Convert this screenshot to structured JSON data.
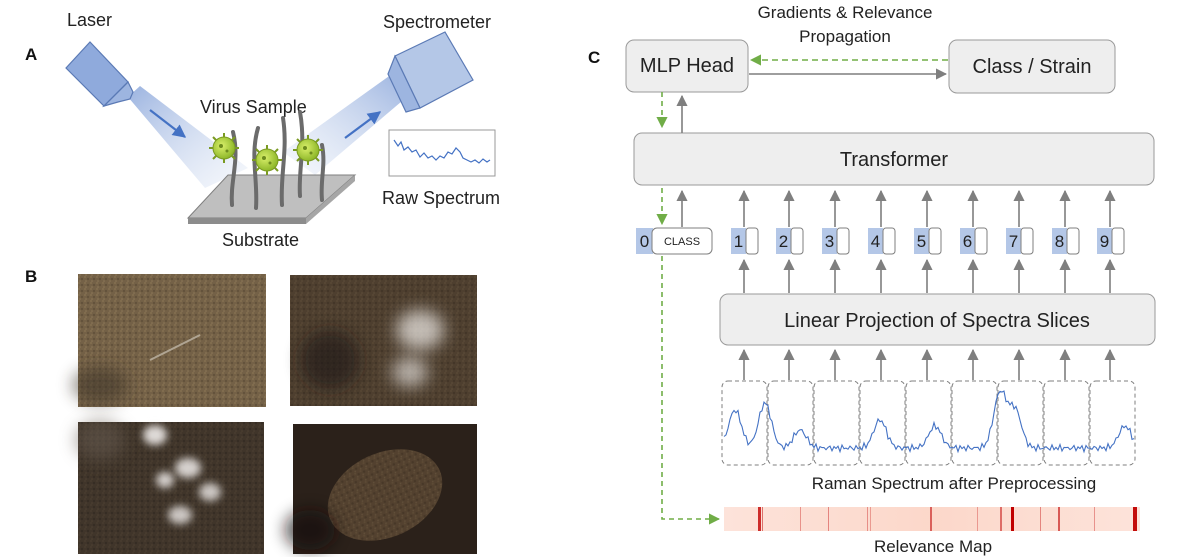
{
  "panel_a": {
    "letter": "A",
    "laser": "Laser",
    "spectrometer": "Spectrometer",
    "virus_sample": "Virus Sample",
    "raw_spectrum": "Raw Spectrum",
    "substrate": "Substrate"
  },
  "panel_b": {
    "letter": "B"
  },
  "panel_c": {
    "letter": "C",
    "mlp_head": "MLP Head",
    "class_strain": "Class / Strain",
    "gradients_line1": "Gradients & Relevance",
    "gradients_line2": "Propagation",
    "transformer": "Transformer",
    "class_token": "CLASS",
    "tokens": [
      "0",
      "1",
      "2",
      "3",
      "4",
      "5",
      "6",
      "7",
      "8",
      "9"
    ],
    "linear_projection": "Linear Projection of Spectra Slices",
    "raman_caption": "Raman Spectrum after Preprocessing",
    "relevance_caption": "Relevance Map"
  },
  "colors": {
    "box_fill": "#eeeeee",
    "box_stroke": "#9a9a9a",
    "token_fill": "#b4c7e7",
    "arrow_gray": "#7f7f7f",
    "arrow_green": "#70ad47",
    "spectrum_blue": "#4472c4"
  }
}
